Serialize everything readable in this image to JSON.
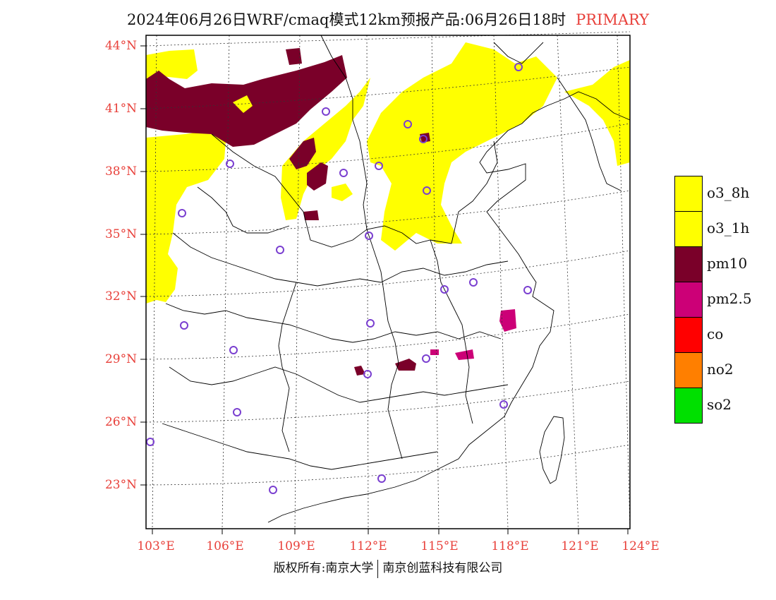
{
  "title": "2024年06月26日WRF/cmaq模式12km预报产品:06月26日18时",
  "title_tag": "PRIMARY",
  "lat_labels": [
    "44°N",
    "41°N",
    "38°N",
    "35°N",
    "32°N",
    "29°N",
    "26°N",
    "23°N"
  ],
  "lon_labels": [
    "103°E",
    "106°E",
    "109°E",
    "112°E",
    "115°E",
    "118°E",
    "121°E",
    "124°E"
  ],
  "legend": [
    {
      "label": "o3_8h",
      "color": "#ffff00"
    },
    {
      "label": "o3_1h",
      "color": "#ffff00"
    },
    {
      "label": "pm10",
      "color": "#7a0029"
    },
    {
      "label": "pm2.5",
      "color": "#cc0077"
    },
    {
      "label": "co",
      "color": "#ff0000"
    },
    {
      "label": "no2",
      "color": "#ff7f00"
    },
    {
      "label": "so2",
      "color": "#00e000"
    }
  ],
  "footer": {
    "left": "版权所有:南京大学",
    "right": "南京创蓝科技有限公司"
  }
}
